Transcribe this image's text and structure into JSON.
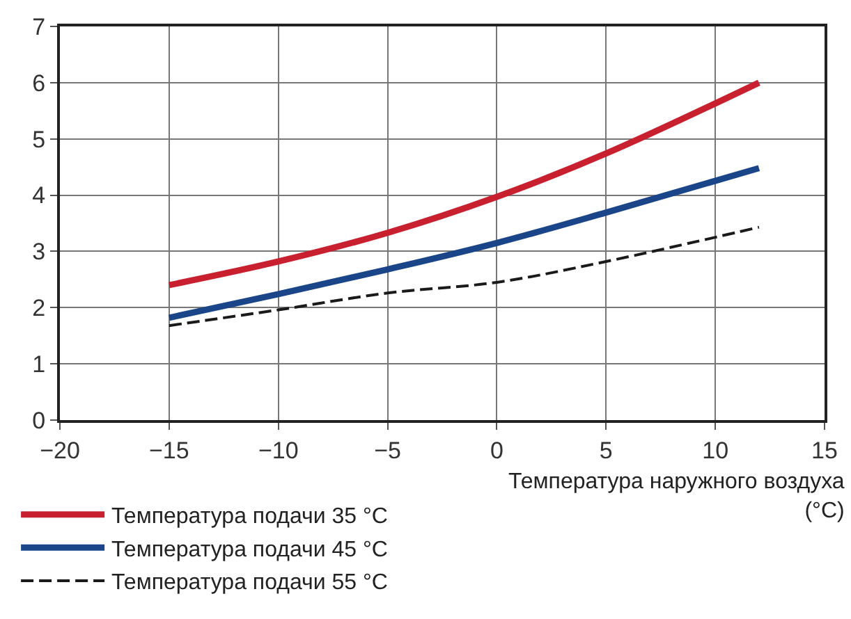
{
  "chart_data": {
    "type": "line",
    "xlabel": "Температура наружного воздуха\n(°C)",
    "x": [
      -15,
      -10,
      -5,
      0,
      5,
      12
    ],
    "series": [
      {
        "name": "Температура подачи 35 °C",
        "color": "#c8202f",
        "values": [
          2.4,
          2.82,
          3.33,
          3.97,
          4.74,
          6.0
        ]
      },
      {
        "name": "Температура подачи 45 °C",
        "color": "#1a4689",
        "values": [
          1.82,
          2.24,
          2.68,
          3.15,
          3.69,
          4.48
        ]
      },
      {
        "name": "Температура подачи 55 °C",
        "color": "#1a1a1a",
        "values": [
          1.68,
          1.96,
          2.26,
          2.45,
          2.82,
          3.43
        ],
        "line_style": "dashed"
      }
    ],
    "xlim": [
      -20,
      15
    ],
    "xticks": [
      -20,
      -15,
      -10,
      -5,
      0,
      5,
      10,
      15
    ],
    "ylim": [
      0,
      7
    ],
    "yticks": [
      0,
      1,
      2,
      3,
      4,
      5,
      6,
      7
    ],
    "grid": true,
    "legend": "bottom left",
    "line_style": "solid"
  }
}
